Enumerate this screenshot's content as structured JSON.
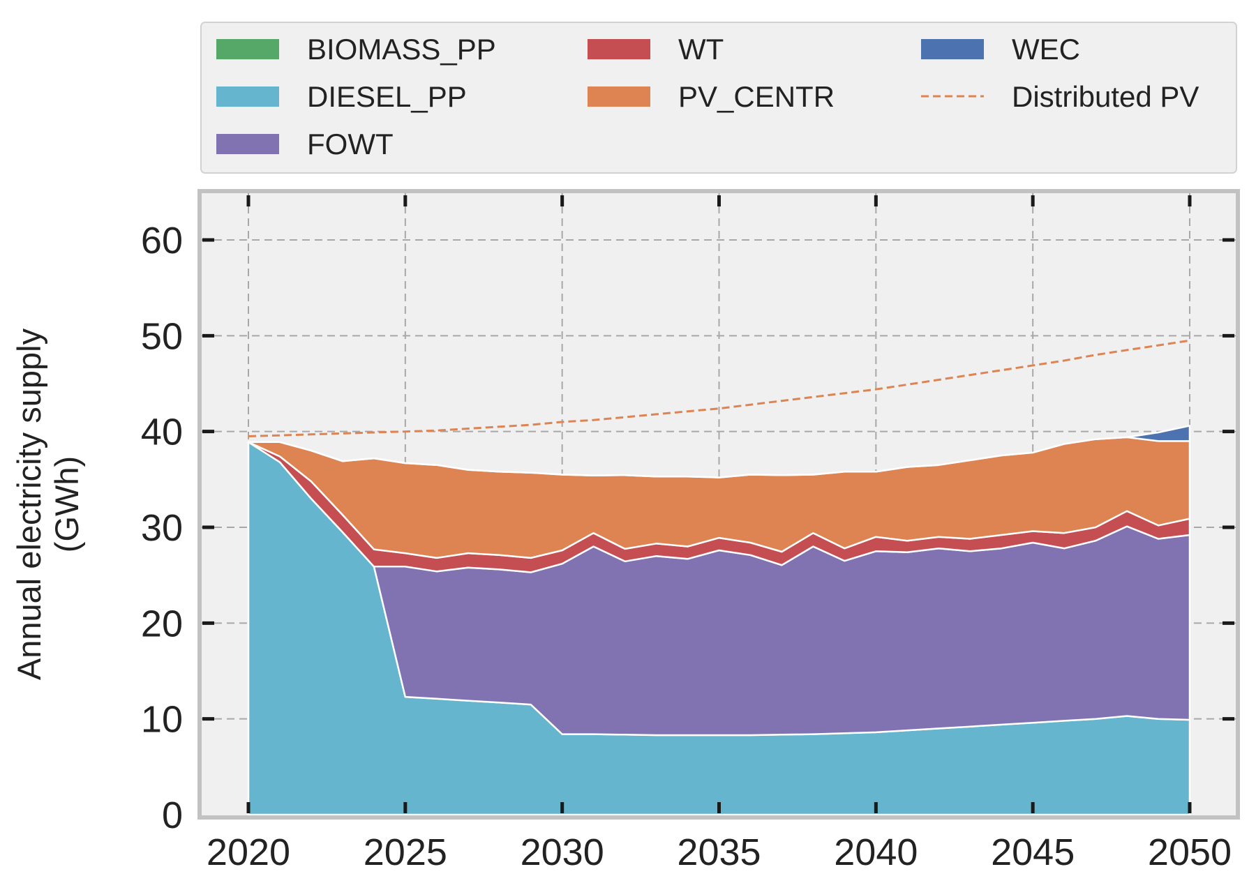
{
  "chart_data": {
    "type": "area",
    "stacked": true,
    "xlabel": "",
    "ylabel": "Annual electricity supply",
    "ylabel_unit": "(GWh)",
    "xlim": [
      2020,
      2050
    ],
    "ylim": [
      0,
      65
    ],
    "grid": true,
    "legend_position": "top",
    "x": [
      2020,
      2021,
      2022,
      2023,
      2024,
      2025,
      2026,
      2027,
      2028,
      2029,
      2030,
      2031,
      2032,
      2033,
      2034,
      2035,
      2036,
      2037,
      2038,
      2039,
      2040,
      2041,
      2042,
      2043,
      2044,
      2045,
      2046,
      2047,
      2048,
      2049,
      2050
    ],
    "x_ticks": [
      2020,
      2025,
      2030,
      2035,
      2040,
      2045,
      2050
    ],
    "x_tick_labels": [
      "2020",
      "2025",
      "2030",
      "2035",
      "2040",
      "2045",
      "2050"
    ],
    "y_ticks": [
      0,
      10,
      20,
      30,
      40,
      50,
      60
    ],
    "y_tick_labels": [
      "0",
      "10",
      "20",
      "30",
      "40",
      "50",
      "60"
    ],
    "series": [
      {
        "name": "BIOMASS_PP",
        "color": "#55a868",
        "values": [
          0,
          0,
          0,
          0,
          0,
          0,
          0,
          0,
          0,
          0,
          0,
          0,
          0,
          0,
          0,
          0,
          0,
          0,
          0,
          0,
          0,
          0,
          0,
          0,
          0,
          0,
          0,
          0,
          0,
          0,
          0
        ]
      },
      {
        "name": "DIESEL_PP",
        "color": "#64b5cd",
        "values": [
          38.9,
          36.8,
          33.0,
          29.5,
          25.9,
          12.3,
          12.1,
          11.9,
          11.7,
          11.5,
          8.4,
          8.4,
          8.35,
          8.3,
          8.3,
          8.3,
          8.3,
          8.35,
          8.4,
          8.5,
          8.6,
          8.8,
          9.0,
          9.2,
          9.4,
          9.6,
          9.8,
          10.0,
          10.3,
          10.0,
          9.9
        ]
      },
      {
        "name": "FOWT",
        "color": "#8172b2",
        "values": [
          0,
          0,
          0,
          0,
          0,
          13.6,
          13.3,
          13.9,
          13.9,
          13.8,
          17.8,
          19.6,
          18.1,
          18.7,
          18.4,
          19.3,
          18.8,
          17.7,
          19.6,
          18.0,
          18.9,
          18.6,
          18.8,
          18.3,
          18.4,
          18.8,
          18.0,
          18.6,
          19.8,
          18.8,
          19.3
        ]
      },
      {
        "name": "WT",
        "color": "#c44e52",
        "values": [
          0,
          0.6,
          1.8,
          1.8,
          1.8,
          1.4,
          1.4,
          1.5,
          1.5,
          1.5,
          1.4,
          1.4,
          1.3,
          1.3,
          1.3,
          1.3,
          1.3,
          1.4,
          1.4,
          1.3,
          1.5,
          1.2,
          1.2,
          1.3,
          1.4,
          1.2,
          1.6,
          1.4,
          1.6,
          1.4,
          1.7
        ]
      },
      {
        "name": "PV_CENTR",
        "color": "#dd8452",
        "values": [
          0,
          1.5,
          3.2,
          5.6,
          9.5,
          9.4,
          9.7,
          8.7,
          8.7,
          8.9,
          7.9,
          6.0,
          7.7,
          7.0,
          7.3,
          6.3,
          7.1,
          8.0,
          6.1,
          8.0,
          6.8,
          7.7,
          7.5,
          8.2,
          8.3,
          8.2,
          9.3,
          9.2,
          7.7,
          8.8,
          8.1
        ]
      },
      {
        "name": "WEC",
        "color": "#4c72b0",
        "values": [
          0,
          0,
          0,
          0,
          0,
          0,
          0,
          0,
          0,
          0,
          0,
          0,
          0,
          0,
          0,
          0,
          0,
          0,
          0,
          0,
          0,
          0,
          0,
          0,
          0,
          0,
          0,
          0,
          0,
          0.9,
          1.6
        ]
      }
    ],
    "lines": [
      {
        "name": "Distributed PV",
        "color": "#dd8452",
        "style": "dashed",
        "values": [
          39.5,
          39.6,
          39.7,
          39.8,
          39.9,
          40.0,
          40.1,
          40.3,
          40.5,
          40.7,
          41.0,
          41.2,
          41.5,
          41.8,
          42.1,
          42.4,
          42.8,
          43.2,
          43.6,
          44.0,
          44.4,
          44.9,
          45.4,
          45.9,
          46.4,
          46.9,
          47.4,
          48.0,
          48.5,
          49.0,
          49.5
        ]
      }
    ]
  }
}
